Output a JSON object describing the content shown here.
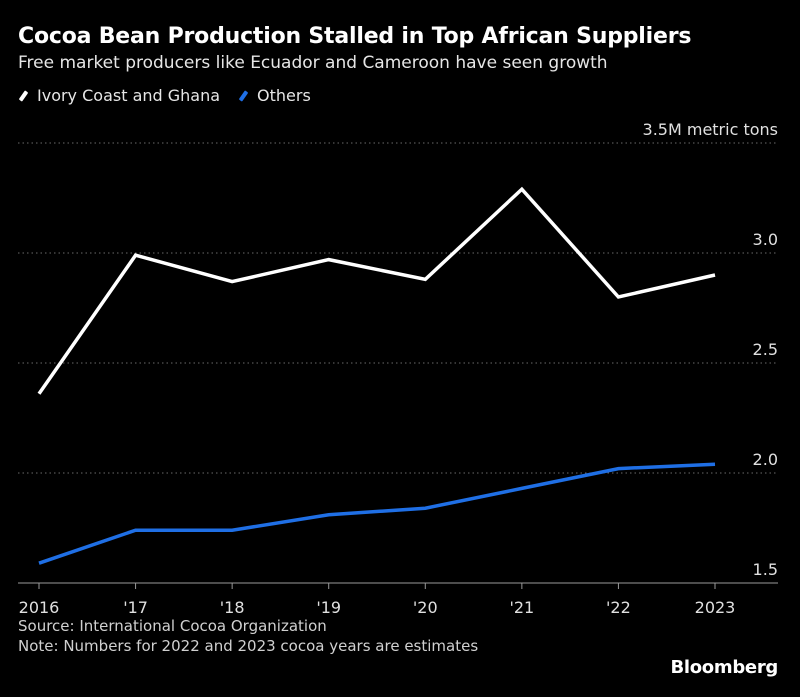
{
  "header": {
    "title": "Cocoa Bean Production Stalled in Top African Suppliers",
    "subtitle": "Free market producers like Ecuador and Cameroon have seen growth"
  },
  "footer": {
    "source": "Source: International Cocoa Organization",
    "note": "Note: Numbers for 2022 and 2023 cocoa years are estimates",
    "brand": "Bloomberg"
  },
  "chart_data": {
    "type": "line",
    "title": "Cocoa Bean Production Stalled in Top African Suppliers",
    "subtitle": "Free market producers like Ecuador and Cameroon have seen growth",
    "x": [
      "2016",
      "'17",
      "'18",
      "'19",
      "'20",
      "'21",
      "'22",
      "2023"
    ],
    "series": [
      {
        "name": "Ivory Coast and Ghana",
        "color": "#ffffff",
        "values": [
          2.36,
          2.99,
          2.87,
          2.97,
          2.88,
          3.29,
          2.8,
          2.9
        ]
      },
      {
        "name": "Others",
        "color": "#1f6fe5",
        "values": [
          1.59,
          1.74,
          1.74,
          1.81,
          1.84,
          1.93,
          2.02,
          2.04
        ]
      }
    ],
    "y_ticks": [
      {
        "value": 3.5,
        "label": "3.5M metric tons"
      },
      {
        "value": 3.0,
        "label": "3.0"
      },
      {
        "value": 2.5,
        "label": "2.5"
      },
      {
        "value": 2.0,
        "label": "2.0"
      },
      {
        "value": 1.5,
        "label": "1.5"
      }
    ],
    "ylim": [
      1.5,
      3.5
    ],
    "grid": true,
    "legend": "top-left"
  }
}
